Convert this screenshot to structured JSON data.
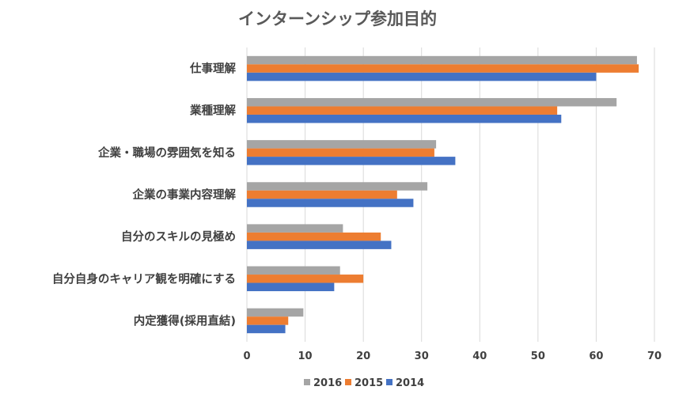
{
  "chart_data": {
    "type": "bar",
    "orientation": "horizontal",
    "title": "インターンシップ参加目的",
    "categories": [
      "仕事理解",
      "業種理解",
      "企業・職場の雰囲気を知る",
      "企業の事業内容理解",
      "自分のスキルの見極め",
      "自分自身のキャリア観を明確にする",
      "内定獲得(採用直結)"
    ],
    "series": [
      {
        "name": "2016",
        "color": "#a5a5a5",
        "values": [
          67.0,
          63.5,
          32.5,
          31.0,
          16.5,
          16.0,
          9.7
        ]
      },
      {
        "name": "2015",
        "color": "#ed7d31",
        "values": [
          67.3,
          53.3,
          32.2,
          25.8,
          23.0,
          20.0,
          7.1
        ]
      },
      {
        "name": "2014",
        "color": "#4472c4",
        "values": [
          60.0,
          54.0,
          35.8,
          28.6,
          24.8,
          15.0,
          6.6
        ]
      }
    ],
    "xlim": [
      0,
      70
    ],
    "xticks": [
      0,
      10,
      20,
      30,
      40,
      50,
      60,
      70
    ],
    "grid": true,
    "legend": "bottom",
    "xlabel": "",
    "ylabel": ""
  }
}
